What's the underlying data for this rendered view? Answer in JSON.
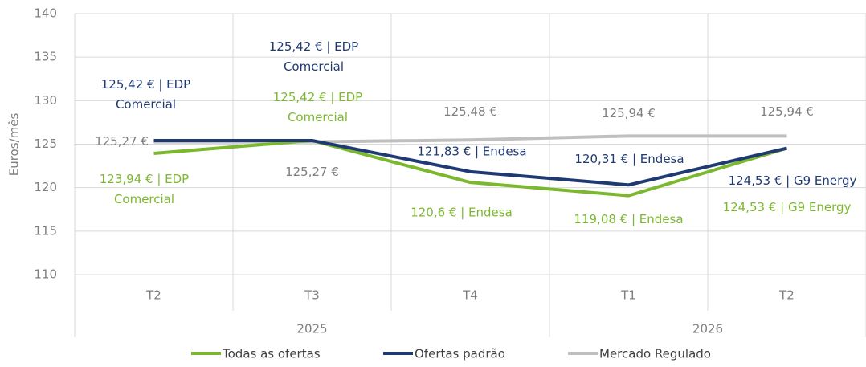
{
  "chart_data": {
    "type": "line",
    "y_label": "Euros/mês",
    "categories": [
      "T2",
      "T3",
      "T4",
      "T1",
      "T2"
    ],
    "x_groups": [
      {
        "label": "2025",
        "span": 3
      },
      {
        "label": "2026",
        "span": 2
      }
    ],
    "series": [
      {
        "name": "Todas as ofertas",
        "color": "#7cb82f",
        "values": [
          123.94,
          125.42,
          120.6,
          119.08,
          124.53
        ],
        "value_labels": [
          "123,94 € | EDP Comercial",
          "125,42 € | EDP Comercial",
          "120,6 € | Endesa",
          "119,08 € | Endesa",
          "124,53 € | G9 Energy"
        ]
      },
      {
        "name": "Ofertas padrão",
        "color": "#1f3a73",
        "values": [
          125.42,
          125.42,
          121.83,
          120.31,
          124.53
        ],
        "value_labels": [
          "125,42 € | EDP Comercial",
          "125,42 € | EDP Comercial",
          "121,83 € | Endesa",
          "120,31 € | Endesa",
          "124,53 € | G9 Energy"
        ]
      },
      {
        "name": "Mercado Regulado",
        "color": "#bfbfbf",
        "values": [
          125.27,
          125.27,
          125.48,
          125.94,
          125.94
        ],
        "value_labels": [
          "125,27 €",
          "125,27 €",
          "125,48 €",
          "125,94 €",
          "125,94 €"
        ]
      }
    ],
    "ylim": [
      110,
      140
    ],
    "yticks": [
      110,
      115,
      120,
      125,
      130,
      135,
      140
    ],
    "grid": true
  }
}
